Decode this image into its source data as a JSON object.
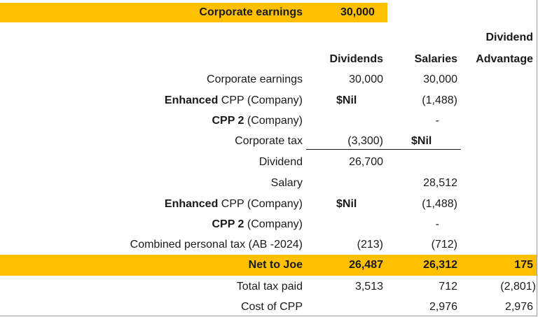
{
  "top": {
    "label": "Corporate earnings",
    "value": "30,000"
  },
  "headers": {
    "dividends": "Dividends",
    "salaries": "Salaries",
    "advantage_line1": "Dividend",
    "advantage_line2": "Advantage"
  },
  "rows": [
    {
      "label": "Corporate earnings",
      "bold": "",
      "rest": "",
      "div": "30,000",
      "sal": "30,000",
      "adv": ""
    },
    {
      "label": "",
      "bold": "Enhanced",
      "rest": " CPP (Company)",
      "div": "$Nil",
      "sal": "(1,488)",
      "adv": ""
    },
    {
      "label": "",
      "bold": "CPP 2",
      "rest": " (Company)",
      "div": "",
      "sal": "-",
      "adv": ""
    },
    {
      "label": "Corporate tax",
      "bold": "",
      "rest": "",
      "div": "(3,300)",
      "sal": "$Nil",
      "adv": ""
    },
    {
      "label": "Dividend",
      "bold": "",
      "rest": "",
      "div": "26,700",
      "sal": "",
      "adv": ""
    },
    {
      "label": "Salary",
      "bold": "",
      "rest": "",
      "div": "",
      "sal": "28,512",
      "adv": ""
    },
    {
      "label": "",
      "bold": "Enhanced",
      "rest": " CPP (Company)",
      "div": "$Nil",
      "sal": "(1,488)",
      "adv": ""
    },
    {
      "label": "",
      "bold": "CPP 2",
      "rest": " (Company)",
      "div": "",
      "sal": "-",
      "adv": ""
    },
    {
      "label": "Combined personal tax (AB -2024)",
      "bold": "",
      "rest": "",
      "div": "(213)",
      "sal": "(712)",
      "adv": ""
    }
  ],
  "net": {
    "label": "Net to Joe",
    "div": "26,487",
    "sal": "26,312",
    "adv": "175"
  },
  "bottom": [
    {
      "label": "Total tax paid",
      "div": "3,513",
      "sal": "712",
      "adv": "(2,801)"
    },
    {
      "label": "Cost of CPP",
      "div": "",
      "sal": "2,976",
      "adv": "2,976"
    }
  ]
}
